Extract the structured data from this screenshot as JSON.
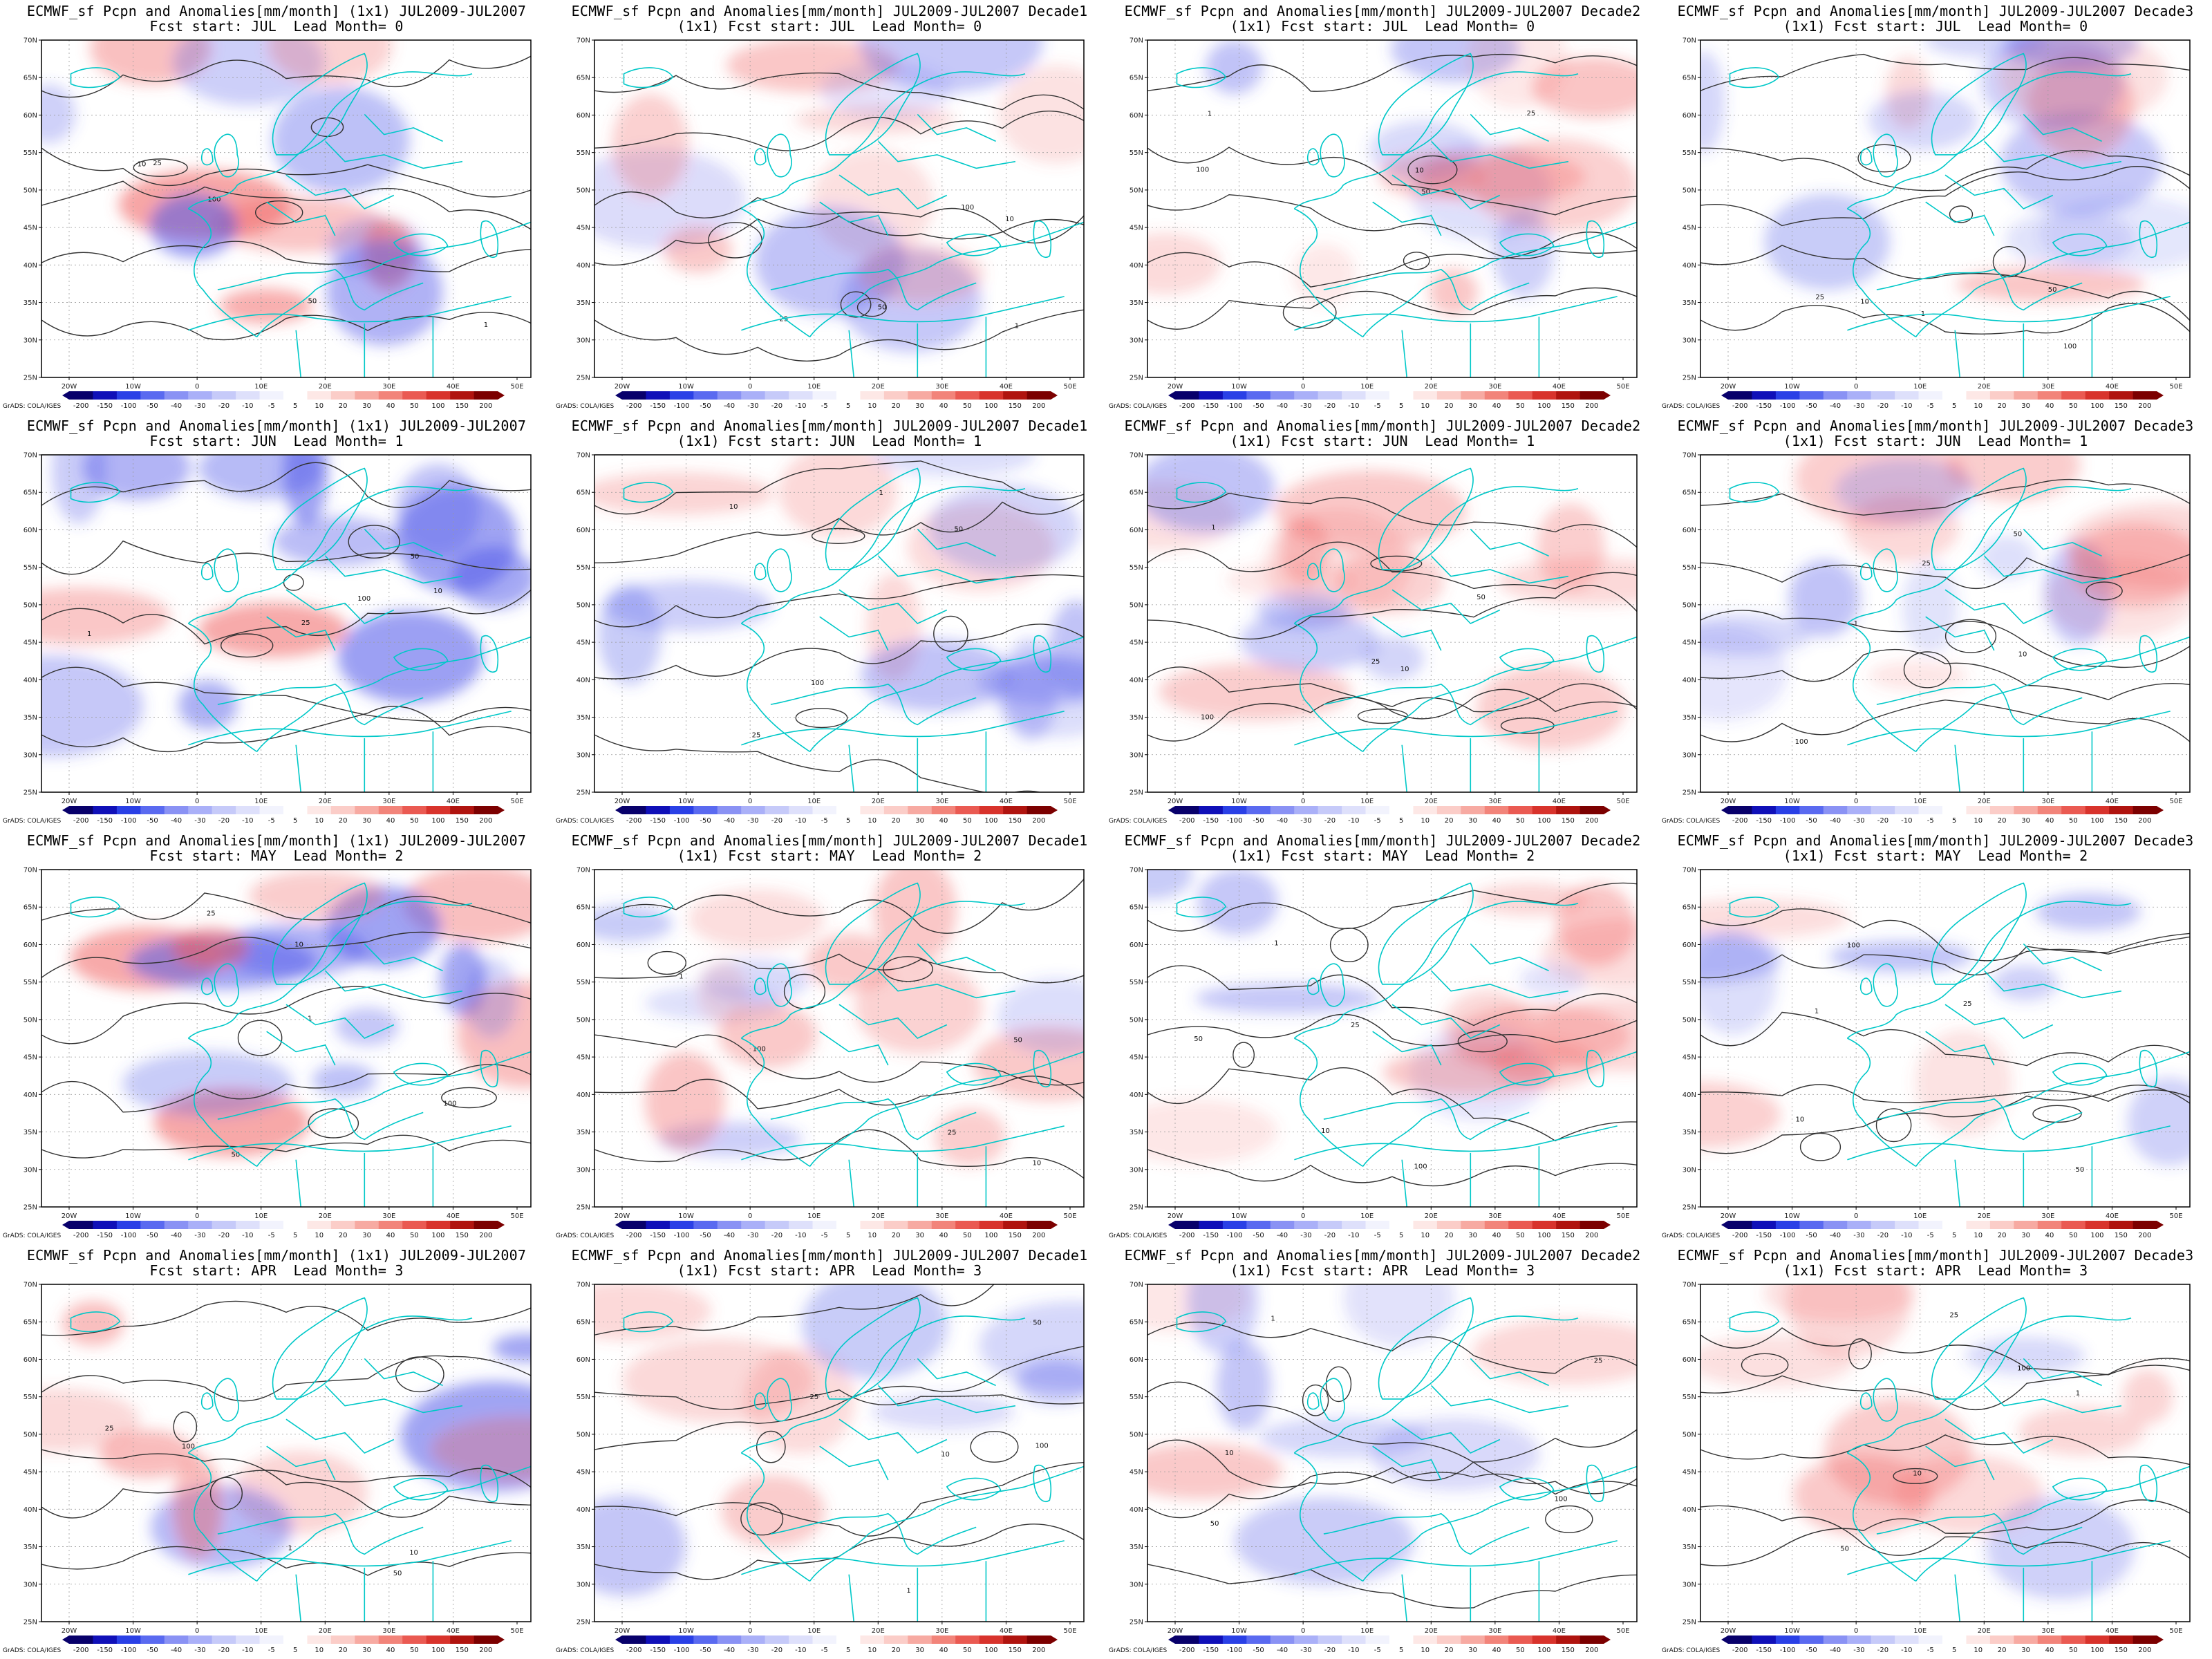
{
  "colorbar": {
    "labels": [
      "-200",
      "-150",
      "-100",
      "-50",
      "-40",
      "-30",
      "-20",
      "-10",
      "-5",
      "5",
      "10",
      "20",
      "30",
      "40",
      "50",
      "100",
      "150",
      "200"
    ],
    "colors": [
      "#08006b",
      "#1010b8",
      "#2a40e6",
      "#5a6af0",
      "#8a92f4",
      "#aab0f8",
      "#c6caf9",
      "#dee0fb",
      "#f2f3fd",
      "#ffffff",
      "#fde8e6",
      "#fbcdc8",
      "#f7aaa2",
      "#f2847a",
      "#ea5a52",
      "#d8332c",
      "#b0140f",
      "#7c0000"
    ],
    "credit": "GrADS: COLA/IGES"
  },
  "axes": {
    "lat_labels": [
      "70N",
      "65N",
      "60N",
      "55N",
      "50N",
      "45N",
      "40N",
      "35N",
      "30N",
      "25N"
    ],
    "lon_labels": [
      "20W",
      "10W",
      "0",
      "10E",
      "20E",
      "30E",
      "40E",
      "50E"
    ]
  },
  "contour_labels": [
    "1",
    "10",
    "25",
    "50",
    "100"
  ],
  "palette": {
    "coast": "#00c8c8",
    "contour": "#333333",
    "grid": "#9a9a9a",
    "pos": "#f05a5a",
    "neg": "#4a52e8"
  },
  "panels": [
    {
      "title1": "ECMWF_sf Pcpn and Anomalies[mm/month] (1x1) JUL2009-JUL2007",
      "title2": "Fcst start: JUL  Lead Month= 0"
    },
    {
      "title1": "ECMWF_sf Pcpn and Anomalies[mm/month] JUL2009-JUL2007 Decade1",
      "title2": "(1x1) Fcst start: JUL  Lead Month= 0"
    },
    {
      "title1": "ECMWF_sf Pcpn and Anomalies[mm/month] JUL2009-JUL2007 Decade2",
      "title2": "(1x1) Fcst start: JUL  Lead Month= 0"
    },
    {
      "title1": "ECMWF_sf Pcpn and Anomalies[mm/month] JUL2009-JUL2007 Decade3",
      "title2": "(1x1) Fcst start: JUL  Lead Month= 0"
    },
    {
      "title1": "ECMWF_sf Pcpn and Anomalies[mm/month] (1x1) JUL2009-JUL2007",
      "title2": "Fcst start: JUN  Lead Month= 1"
    },
    {
      "title1": "ECMWF_sf Pcpn and Anomalies[mm/month] JUL2009-JUL2007 Decade1",
      "title2": "(1x1) Fcst start: JUN  Lead Month= 1"
    },
    {
      "title1": "ECMWF_sf Pcpn and Anomalies[mm/month] JUL2009-JUL2007 Decade2",
      "title2": "(1x1) Fcst start: JUN  Lead Month= 1"
    },
    {
      "title1": "ECMWF_sf Pcpn and Anomalies[mm/month] JUL2009-JUL2007 Decade3",
      "title2": "(1x1) Fcst start: JUN  Lead Month= 1"
    },
    {
      "title1": "ECMWF_sf Pcpn and Anomalies[mm/month] (1x1) JUL2009-JUL2007",
      "title2": "Fcst start: MAY  Lead Month= 2"
    },
    {
      "title1": "ECMWF_sf Pcpn and Anomalies[mm/month] JUL2009-JUL2007 Decade1",
      "title2": "(1x1) Fcst start: MAY  Lead Month= 2"
    },
    {
      "title1": "ECMWF_sf Pcpn and Anomalies[mm/month] JUL2009-JUL2007 Decade2",
      "title2": "(1x1) Fcst start: MAY  Lead Month= 2"
    },
    {
      "title1": "ECMWF_sf Pcpn and Anomalies[mm/month] JUL2009-JUL2007 Decade3",
      "title2": "(1x1) Fcst start: MAY  Lead Month= 2"
    },
    {
      "title1": "ECMWF_sf Pcpn and Anomalies[mm/month] (1x1) JUL2009-JUL2007",
      "title2": "Fcst start: APR  Lead Month= 3"
    },
    {
      "title1": "ECMWF_sf Pcpn and Anomalies[mm/month] JUL2009-JUL2007 Decade1",
      "title2": "(1x1) Fcst start: APR  Lead Month= 3"
    },
    {
      "title1": "ECMWF_sf Pcpn and Anomalies[mm/month] JUL2009-JUL2007 Decade2",
      "title2": "(1x1) Fcst start: APR  Lead Month= 3"
    },
    {
      "title1": "ECMWF_sf Pcpn and Anomalies[mm/month] JUL2009-JUL2007 Decade3",
      "title2": "(1x1) Fcst start: APR  Lead Month= 3"
    }
  ]
}
